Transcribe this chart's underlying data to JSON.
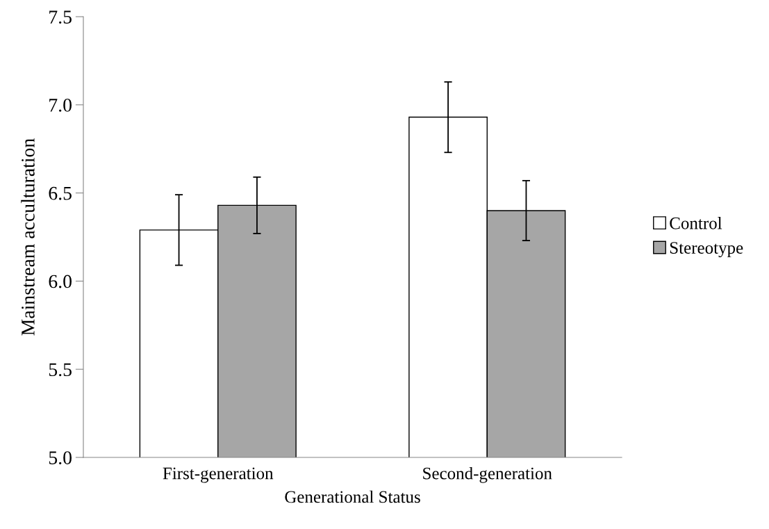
{
  "chart_data": {
    "type": "bar",
    "xlabel": "Generational Status",
    "ylabel": "Mainstream acculturation",
    "categories": [
      "First-generation",
      "Second-generation"
    ],
    "series": [
      {
        "name": "Control",
        "color": "#ffffff",
        "values": [
          6.29,
          6.93
        ],
        "errors": [
          0.2,
          0.2
        ]
      },
      {
        "name": "Stereotype",
        "color": "#a6a6a6",
        "values": [
          6.43,
          6.4
        ],
        "errors": [
          0.16,
          0.17
        ]
      }
    ],
    "ylim": [
      5.0,
      7.5
    ],
    "yticks": [
      {
        "value": 5.0,
        "label": "5.0"
      },
      {
        "value": 5.5,
        "label": "5.5"
      },
      {
        "value": 6.0,
        "label": "6.0"
      },
      {
        "value": 6.5,
        "label": "6.5"
      },
      {
        "value": 7.0,
        "label": "7.0"
      },
      {
        "value": 7.5,
        "label": "7.5"
      }
    ],
    "grid": false,
    "legend": "right"
  }
}
